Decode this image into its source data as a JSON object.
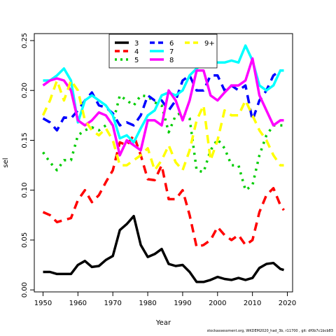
{
  "footer": "stockassessment.org, WKDEM2020_had_3b, r11700 , git: df0b7c1bcb83",
  "chart_data": {
    "type": "line",
    "title": "",
    "xlabel": "Year",
    "ylabel": "sel",
    "xlim": [
      1947.5,
      2021.5
    ],
    "ylim": [
      -0.002,
      0.257
    ],
    "x_ticks": [
      1950,
      1960,
      1970,
      1980,
      1990,
      2000,
      2010,
      2020
    ],
    "y_ticks": [
      0.0,
      0.05,
      0.1,
      0.15,
      0.2,
      0.25
    ],
    "y_tick_labels": [
      "0.00",
      "0.05",
      "0.10",
      "0.15",
      "0.20",
      "0.25"
    ],
    "grid": false,
    "legend_position": "top-center",
    "x": [
      1950,
      1952,
      1954,
      1956,
      1958,
      1960,
      1962,
      1964,
      1966,
      1968,
      1970,
      1972,
      1974,
      1976,
      1978,
      1980,
      1982,
      1984,
      1986,
      1988,
      1990,
      1992,
      1994,
      1996,
      1998,
      2000,
      2002,
      2004,
      2006,
      2008,
      2010,
      2012,
      2014,
      2016,
      2018,
      2019
    ],
    "series": [
      {
        "name": "3",
        "color": "#000000",
        "dash": "solid",
        "values": [
          0.018,
          0.018,
          0.016,
          0.016,
          0.016,
          0.025,
          0.029,
          0.023,
          0.024,
          0.03,
          0.034,
          0.06,
          0.066,
          0.074,
          0.045,
          0.033,
          0.036,
          0.041,
          0.026,
          0.024,
          0.025,
          0.018,
          0.008,
          0.008,
          0.01,
          0.013,
          0.011,
          0.01,
          0.012,
          0.01,
          0.012,
          0.022,
          0.026,
          0.027,
          0.021,
          0.02
        ]
      },
      {
        "name": "4",
        "color": "#ff0000",
        "dash": "dashed",
        "values": [
          0.078,
          0.075,
          0.068,
          0.07,
          0.072,
          0.09,
          0.1,
          0.088,
          0.095,
          0.108,
          0.12,
          0.148,
          0.145,
          0.155,
          0.135,
          0.111,
          0.11,
          0.125,
          0.091,
          0.091,
          0.1,
          0.075,
          0.043,
          0.045,
          0.05,
          0.063,
          0.055,
          0.05,
          0.055,
          0.045,
          0.05,
          0.078,
          0.095,
          0.102,
          0.085,
          0.08
        ]
      },
      {
        "name": "5",
        "color": "#00cd00",
        "dash": "dotted",
        "values": [
          0.138,
          0.128,
          0.12,
          0.13,
          0.13,
          0.155,
          0.16,
          0.163,
          0.16,
          0.165,
          0.167,
          0.195,
          0.19,
          0.185,
          0.195,
          0.194,
          0.188,
          0.185,
          0.158,
          0.175,
          0.178,
          0.172,
          0.12,
          0.118,
          0.14,
          0.151,
          0.142,
          0.125,
          0.125,
          0.1,
          0.105,
          0.135,
          0.155,
          0.165,
          0.165,
          0.165
        ]
      },
      {
        "name": "6",
        "color": "#0000ff",
        "dash": "dashed",
        "values": [
          0.172,
          0.168,
          0.16,
          0.173,
          0.172,
          0.18,
          0.19,
          0.198,
          0.185,
          0.183,
          0.177,
          0.165,
          0.168,
          0.165,
          0.175,
          0.195,
          0.19,
          0.19,
          0.18,
          0.19,
          0.21,
          0.215,
          0.2,
          0.2,
          0.215,
          0.215,
          0.2,
          0.205,
          0.2,
          0.205,
          0.17,
          0.19,
          0.2,
          0.215,
          0.22,
          0.22
        ]
      },
      {
        "name": "7",
        "color": "#00ffff",
        "dash": "solid",
        "values": [
          0.21,
          0.21,
          0.215,
          0.222,
          0.21,
          0.168,
          0.19,
          0.195,
          0.19,
          0.185,
          0.175,
          0.152,
          0.155,
          0.148,
          0.162,
          0.175,
          0.18,
          0.195,
          0.198,
          0.195,
          0.2,
          0.215,
          0.222,
          0.228,
          0.228,
          0.228,
          0.228,
          0.23,
          0.228,
          0.245,
          0.23,
          0.205,
          0.2,
          0.205,
          0.22,
          0.22
        ]
      },
      {
        "name": "8",
        "color": "#ff00ff",
        "dash": "solid",
        "values": [
          0.205,
          0.21,
          0.212,
          0.21,
          0.2,
          0.17,
          0.165,
          0.17,
          0.178,
          0.175,
          0.165,
          0.135,
          0.15,
          0.145,
          0.14,
          0.17,
          0.17,
          0.165,
          0.2,
          0.19,
          0.17,
          0.19,
          0.22,
          0.22,
          0.195,
          0.19,
          0.198,
          0.205,
          0.205,
          0.21,
          0.232,
          0.195,
          0.18,
          0.165,
          0.17,
          0.17
        ]
      },
      {
        "name": "9+",
        "color": "#ffff00",
        "dash": "dashed",
        "values": [
          0.175,
          0.19,
          0.21,
          0.19,
          0.21,
          0.2,
          0.17,
          0.16,
          0.155,
          0.162,
          0.15,
          0.125,
          0.125,
          0.13,
          0.135,
          0.142,
          0.12,
          0.13,
          0.145,
          0.128,
          0.12,
          0.14,
          0.17,
          0.185,
          0.13,
          0.15,
          0.18,
          0.175,
          0.175,
          0.19,
          0.175,
          0.16,
          0.15,
          0.135,
          0.125,
          0.125
        ]
      }
    ]
  }
}
